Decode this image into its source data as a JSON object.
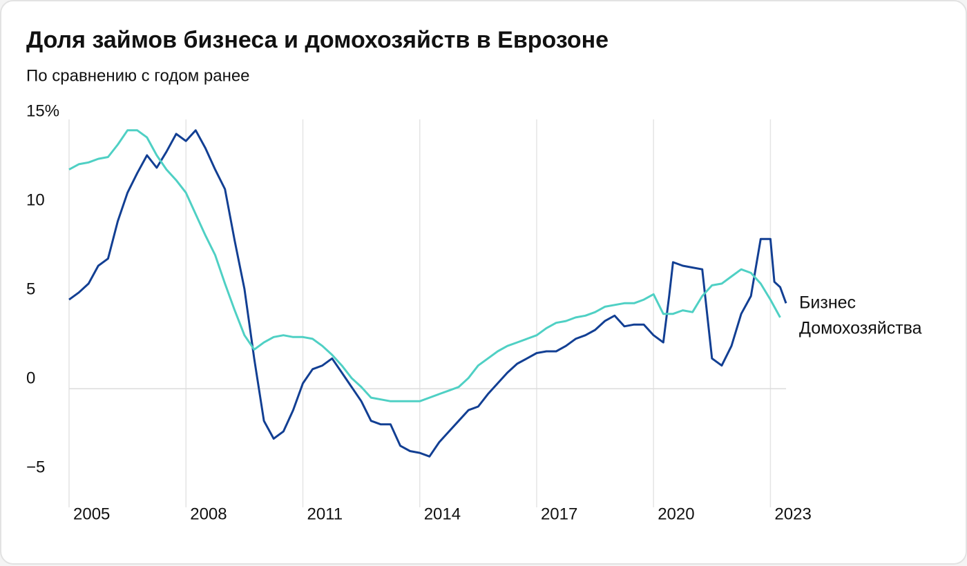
{
  "chart_data": {
    "type": "line",
    "title": "Доля займов бизнеса и домохозяйств в Еврозоне",
    "subtitle": "По сравнению с годом ранее",
    "xlim": [
      2005,
      2023.4
    ],
    "xticks": [
      2005,
      2008,
      2011,
      2014,
      2017,
      2020,
      2023
    ],
    "ylim": [
      -6.5,
      15.5
    ],
    "yticks": [
      {
        "value": 15,
        "label": "15%"
      },
      10,
      5,
      0,
      {
        "value": -5,
        "label": "−5"
      }
    ],
    "grid": true,
    "series": [
      {
        "name": "Бизнес",
        "color": "#123f93",
        "x": [
          2005,
          2005.25,
          2005.5,
          2005.75,
          2006,
          2006.25,
          2006.5,
          2006.75,
          2007,
          2007.25,
          2007.5,
          2007.75,
          2008,
          2008.25,
          2008.5,
          2008.75,
          2009,
          2009.25,
          2009.5,
          2009.75,
          2010,
          2010.25,
          2010.5,
          2010.75,
          2011,
          2011.25,
          2011.5,
          2011.75,
          2012,
          2012.25,
          2012.5,
          2012.75,
          2013,
          2013.25,
          2013.5,
          2013.75,
          2014,
          2014.25,
          2014.5,
          2014.75,
          2015,
          2015.25,
          2015.5,
          2015.75,
          2016,
          2016.25,
          2016.5,
          2016.75,
          2017,
          2017.25,
          2017.5,
          2017.75,
          2018,
          2018.25,
          2018.5,
          2018.75,
          2019,
          2019.25,
          2019.5,
          2019.75,
          2020,
          2020.25,
          2020.4,
          2020.5,
          2020.75,
          2021,
          2021.25,
          2021.5,
          2021.75,
          2022,
          2022.25,
          2022.5,
          2022.75,
          2023,
          2023.1,
          2023.25,
          2023.4
        ],
        "values": [
          5.0,
          5.4,
          5.9,
          6.9,
          7.3,
          9.4,
          11.0,
          12.1,
          13.1,
          12.4,
          13.3,
          14.3,
          13.9,
          14.5,
          13.5,
          12.3,
          11.2,
          8.3,
          5.6,
          1.7,
          -1.8,
          -2.8,
          -2.4,
          -1.2,
          0.3,
          1.1,
          1.3,
          1.7,
          0.9,
          0.1,
          -0.7,
          -1.8,
          -2.0,
          -2.0,
          -3.2,
          -3.5,
          -3.6,
          -3.8,
          -3.0,
          -2.4,
          -1.8,
          -1.2,
          -1.0,
          -0.3,
          0.3,
          0.9,
          1.4,
          1.7,
          2.0,
          2.1,
          2.1,
          2.4,
          2.8,
          3.0,
          3.3,
          3.8,
          4.1,
          3.5,
          3.6,
          3.6,
          3.0,
          2.6,
          5.2,
          7.1,
          6.9,
          6.8,
          6.7,
          1.7,
          1.3,
          2.4,
          4.2,
          5.2,
          8.4,
          8.4,
          6.0,
          5.7,
          4.8
        ]
      },
      {
        "name": "Домохозяйства",
        "color": "#4fd0c4",
        "x": [
          2005,
          2005.25,
          2005.5,
          2005.75,
          2006,
          2006.25,
          2006.5,
          2006.75,
          2007,
          2007.25,
          2007.5,
          2007.75,
          2008,
          2008.25,
          2008.5,
          2008.75,
          2009,
          2009.25,
          2009.5,
          2009.75,
          2010,
          2010.25,
          2010.5,
          2010.75,
          2011,
          2011.25,
          2011.5,
          2011.75,
          2012,
          2012.25,
          2012.5,
          2012.75,
          2013,
          2013.25,
          2013.5,
          2013.75,
          2014,
          2014.25,
          2014.5,
          2014.75,
          2015,
          2015.25,
          2015.5,
          2015.75,
          2016,
          2016.25,
          2016.5,
          2016.75,
          2017,
          2017.25,
          2017.5,
          2017.75,
          2018,
          2018.25,
          2018.5,
          2018.75,
          2019,
          2019.25,
          2019.5,
          2019.75,
          2020,
          2020.25,
          2020.5,
          2020.75,
          2021,
          2021.25,
          2021.5,
          2021.75,
          2022,
          2022.25,
          2022.5,
          2022.75,
          2023,
          2023.25
        ],
        "values": [
          12.3,
          12.6,
          12.7,
          12.9,
          13.0,
          13.7,
          14.5,
          14.5,
          14.1,
          13.1,
          12.3,
          11.7,
          11.0,
          9.8,
          8.6,
          7.5,
          5.9,
          4.4,
          3.0,
          2.2,
          2.6,
          2.9,
          3.0,
          2.9,
          2.9,
          2.8,
          2.4,
          1.9,
          1.3,
          0.6,
          0.1,
          -0.5,
          -0.6,
          -0.7,
          -0.7,
          -0.7,
          -0.7,
          -0.5,
          -0.3,
          -0.1,
          0.1,
          0.6,
          1.3,
          1.7,
          2.1,
          2.4,
          2.6,
          2.8,
          3.0,
          3.4,
          3.7,
          3.8,
          4.0,
          4.1,
          4.3,
          4.6,
          4.7,
          4.8,
          4.8,
          5.0,
          5.3,
          4.2,
          4.2,
          4.4,
          4.3,
          5.2,
          5.8,
          5.9,
          6.3,
          6.7,
          6.5,
          5.9,
          5.0,
          4.0
        ]
      }
    ]
  }
}
